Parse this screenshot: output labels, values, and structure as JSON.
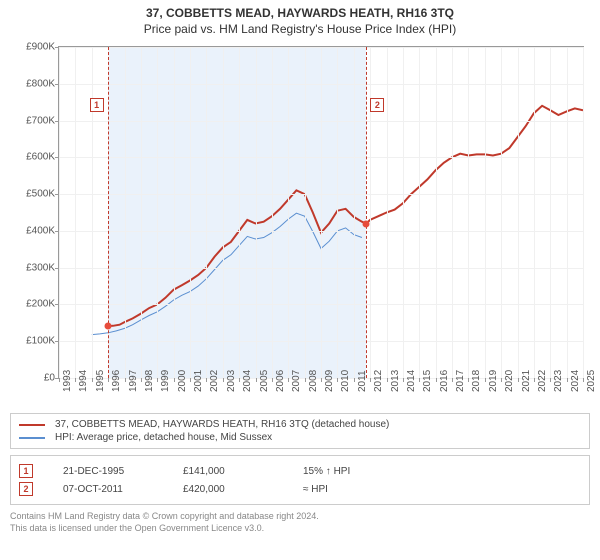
{
  "chart": {
    "title": "37, COBBETTS MEAD, HAYWARDS HEATH, RH16 3TQ",
    "subtitle": "Price paid vs. HM Land Registry's House Price Index (HPI)",
    "type": "line",
    "background_color": "#ffffff",
    "plot_border_color": "#999999",
    "grid_color": "#f0f0f0",
    "axis_label_color": "#555555",
    "axis_label_fontsize": 10,
    "title_fontsize": 12,
    "x": {
      "min": 1993,
      "max": 2025,
      "tick_step": 1,
      "label_rotation": -90
    },
    "y": {
      "min": 0,
      "max": 900,
      "tick_step": 100,
      "prefix": "£",
      "suffix": "K"
    },
    "shaded_region": {
      "from": 1995.97,
      "to": 2011.77,
      "color": "#eaf2fb"
    },
    "markers": [
      {
        "id": "1",
        "x": 1995.97,
        "y": 141,
        "label_y": 760,
        "box_side": "left"
      },
      {
        "id": "2",
        "x": 2011.77,
        "y": 420,
        "label_y": 760,
        "box_side": "right"
      }
    ],
    "series": [
      {
        "name": "37, COBBETTS MEAD, HAYWARDS HEATH, RH16 3TQ (detached house)",
        "color": "#c0392b",
        "width": 2,
        "points": [
          [
            1995.97,
            141
          ],
          [
            1996.3,
            142
          ],
          [
            1996.7,
            145
          ],
          [
            1997.0,
            152
          ],
          [
            1997.5,
            162
          ],
          [
            1998.0,
            175
          ],
          [
            1998.5,
            190
          ],
          [
            1999.0,
            200
          ],
          [
            1999.5,
            218
          ],
          [
            2000.0,
            240
          ],
          [
            2000.5,
            252
          ],
          [
            2001.0,
            265
          ],
          [
            2001.5,
            280
          ],
          [
            2002.0,
            300
          ],
          [
            2002.5,
            330
          ],
          [
            2003.0,
            355
          ],
          [
            2003.5,
            370
          ],
          [
            2004.0,
            400
          ],
          [
            2004.5,
            430
          ],
          [
            2005.0,
            420
          ],
          [
            2005.5,
            425
          ],
          [
            2006.0,
            440
          ],
          [
            2006.5,
            460
          ],
          [
            2007.0,
            485
          ],
          [
            2007.5,
            510
          ],
          [
            2008.0,
            500
          ],
          [
            2008.5,
            450
          ],
          [
            2009.0,
            395
          ],
          [
            2009.5,
            420
          ],
          [
            2010.0,
            455
          ],
          [
            2010.5,
            460
          ],
          [
            2011.0,
            438
          ],
          [
            2011.5,
            425
          ],
          [
            2011.77,
            420
          ],
          [
            2012.0,
            430
          ],
          [
            2012.5,
            440
          ],
          [
            2013.0,
            450
          ],
          [
            2013.5,
            458
          ],
          [
            2014.0,
            475
          ],
          [
            2014.5,
            500
          ],
          [
            2015.0,
            520
          ],
          [
            2015.5,
            540
          ],
          [
            2016.0,
            565
          ],
          [
            2016.5,
            585
          ],
          [
            2017.0,
            600
          ],
          [
            2017.5,
            610
          ],
          [
            2018.0,
            605
          ],
          [
            2018.5,
            608
          ],
          [
            2019.0,
            608
          ],
          [
            2019.5,
            605
          ],
          [
            2020.0,
            610
          ],
          [
            2020.5,
            625
          ],
          [
            2021.0,
            655
          ],
          [
            2021.5,
            685
          ],
          [
            2022.0,
            720
          ],
          [
            2022.5,
            740
          ],
          [
            2023.0,
            728
          ],
          [
            2023.5,
            715
          ],
          [
            2024.0,
            725
          ],
          [
            2024.5,
            733
          ],
          [
            2025.0,
            728
          ]
        ]
      },
      {
        "name": "HPI: Average price, detached house, Mid Sussex",
        "color": "#5b8fd0",
        "width": 1,
        "points": [
          [
            1995.0,
            118
          ],
          [
            1995.5,
            120
          ],
          [
            1996.0,
            123
          ],
          [
            1996.5,
            128
          ],
          [
            1997.0,
            135
          ],
          [
            1997.5,
            145
          ],
          [
            1998.0,
            158
          ],
          [
            1998.5,
            170
          ],
          [
            1999.0,
            180
          ],
          [
            1999.5,
            195
          ],
          [
            2000.0,
            212
          ],
          [
            2000.5,
            225
          ],
          [
            2001.0,
            235
          ],
          [
            2001.5,
            250
          ],
          [
            2002.0,
            270
          ],
          [
            2002.5,
            295
          ],
          [
            2003.0,
            320
          ],
          [
            2003.5,
            335
          ],
          [
            2004.0,
            360
          ],
          [
            2004.5,
            385
          ],
          [
            2005.0,
            378
          ],
          [
            2005.5,
            382
          ],
          [
            2006.0,
            395
          ],
          [
            2006.5,
            412
          ],
          [
            2007.0,
            432
          ],
          [
            2007.5,
            448
          ],
          [
            2008.0,
            440
          ],
          [
            2008.5,
            398
          ],
          [
            2009.0,
            352
          ],
          [
            2009.5,
            372
          ],
          [
            2010.0,
            400
          ],
          [
            2010.5,
            408
          ],
          [
            2011.0,
            390
          ],
          [
            2011.5,
            382
          ]
        ]
      }
    ]
  },
  "legend": {
    "rows": [
      {
        "color": "#c0392b",
        "label": "37, COBBETTS MEAD, HAYWARDS HEATH, RH16 3TQ (detached house)"
      },
      {
        "color": "#5b8fd0",
        "label": "HPI: Average price, detached house, Mid Sussex"
      }
    ]
  },
  "sales": [
    {
      "marker": "1",
      "date": "21-DEC-1995",
      "price": "£141,000",
      "delta": "15% ↑ HPI"
    },
    {
      "marker": "2",
      "date": "07-OCT-2011",
      "price": "£420,000",
      "delta": "≈ HPI"
    }
  ],
  "attribution": {
    "line1": "Contains HM Land Registry data © Crown copyright and database right 2024.",
    "line2": "This data is licensed under the Open Government Licence v3.0."
  }
}
